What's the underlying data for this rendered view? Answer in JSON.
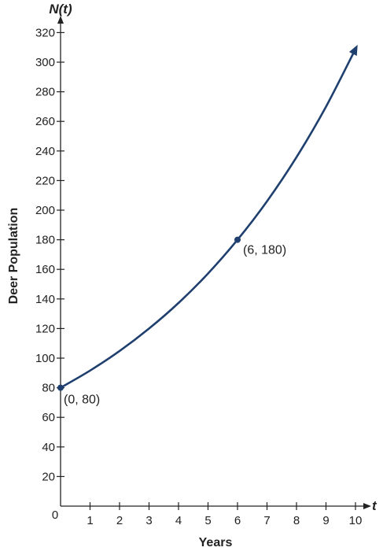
{
  "chart_data": {
    "type": "line",
    "title": "",
    "xlabel": "Years",
    "ylabel": "Deer Population",
    "x_axis_var": "t",
    "y_axis_var": "N(t)",
    "origin_label": "0",
    "xlim": [
      0,
      10
    ],
    "ylim": [
      0,
      320
    ],
    "x_ticks": [
      1,
      2,
      3,
      4,
      5,
      6,
      7,
      8,
      9,
      10
    ],
    "y_ticks": [
      20,
      40,
      60,
      80,
      100,
      120,
      140,
      160,
      180,
      200,
      220,
      240,
      260,
      280,
      300,
      320
    ],
    "grid": false,
    "series": [
      {
        "function": "N(t) = 80 * 1.1446^t",
        "x": [
          0,
          1,
          2,
          3,
          4,
          5,
          6,
          7,
          8,
          9,
          10
        ],
        "y": [
          80,
          91.6,
          104.8,
          120,
          137.3,
          157.2,
          180,
          206.0,
          235.8,
          269.9,
          308.9
        ],
        "color": "#1f3f6e"
      }
    ],
    "points": [
      {
        "x": 0,
        "y": 80,
        "label": "(0, 80)"
      },
      {
        "x": 6,
        "y": 180,
        "label": "(6, 180)"
      }
    ]
  }
}
